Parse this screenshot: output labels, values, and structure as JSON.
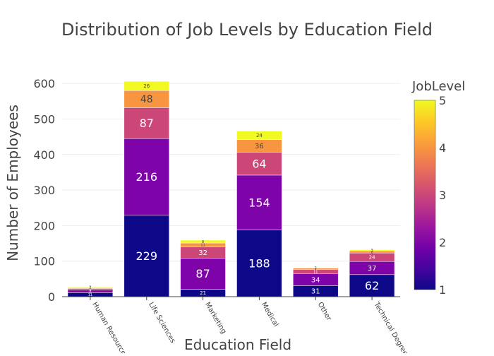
{
  "chart_data": {
    "type": "bar",
    "stacked": true,
    "title": "Distribution of Job Levels by Education Field",
    "xlabel": "Education Field",
    "ylabel": "Number of Employees",
    "ylim": [
      0,
      640
    ],
    "yticks": [
      0,
      100,
      200,
      300,
      400,
      500,
      600
    ],
    "grid": true,
    "categories": [
      "Human Resources",
      "Life Sciences",
      "Marketing",
      "Medical",
      "Other",
      "Technical Degree"
    ],
    "series": [
      {
        "name": "1",
        "color": "#0d0887",
        "values": [
          11,
          229,
          21,
          188,
          31,
          62
        ]
      },
      {
        "name": "2",
        "color": "#7e03a8",
        "values": [
          8,
          216,
          87,
          154,
          34,
          37
        ]
      },
      {
        "name": "3",
        "color": "#cc4778",
        "values": [
          4,
          87,
          32,
          64,
          11,
          24
        ]
      },
      {
        "name": "4",
        "color": "#f89540",
        "values": [
          2,
          48,
          11,
          36,
          4,
          6
        ]
      },
      {
        "name": "5",
        "color": "#f0f921",
        "values": [
          2,
          26,
          8,
          24,
          2,
          3
        ]
      }
    ],
    "colorbar": {
      "title": "JobLevel",
      "min": 1,
      "max": 5,
      "ticks": [
        "1",
        "2",
        "3",
        "4",
        "5"
      ],
      "colorscale": [
        "#0d0887",
        "#46039f",
        "#7201a8",
        "#9c179e",
        "#bd3786",
        "#d8576b",
        "#ed7953",
        "#fb9f3a",
        "#fdca26",
        "#f0f921"
      ]
    }
  }
}
